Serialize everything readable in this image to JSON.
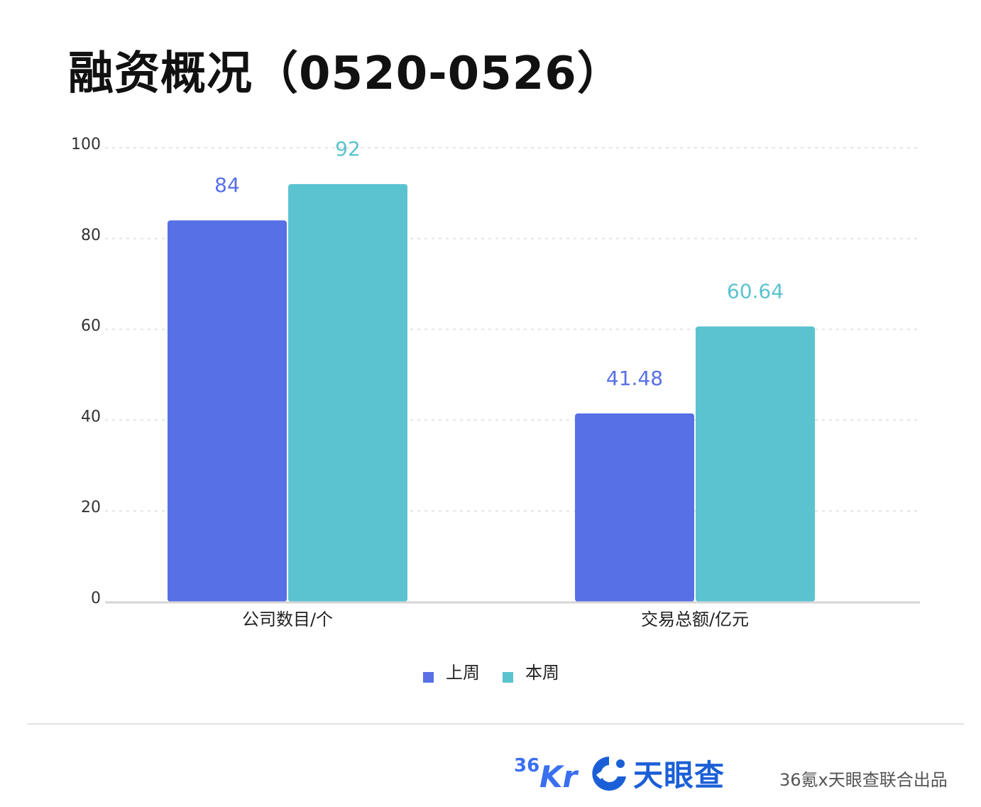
{
  "chart_data": {
    "type": "bar",
    "title": "融资概况（0520-0526）",
    "categories": [
      "公司数目/个",
      "交易总额/亿元"
    ],
    "series": [
      {
        "name": "上周",
        "values": [
          84,
          41.48
        ],
        "color": "#5770e6"
      },
      {
        "name": "本周",
        "values": [
          92,
          60.64
        ],
        "color": "#5bc3d0"
      }
    ],
    "data_labels": [
      [
        "84",
        "41.48"
      ],
      [
        "92",
        "60.64"
      ]
    ],
    "ylim": [
      0,
      100
    ],
    "yticks": [
      0,
      20,
      40,
      60,
      80,
      100
    ],
    "ytick_labels": [
      "0",
      "20",
      "40",
      "60",
      "80",
      "100"
    ],
    "grid": true,
    "legend_position": "bottom-center"
  },
  "footer": {
    "logo_36kr": "36Kr",
    "logo_tianyancha": "天眼查",
    "credit": "36氪x天眼查联合出品"
  }
}
